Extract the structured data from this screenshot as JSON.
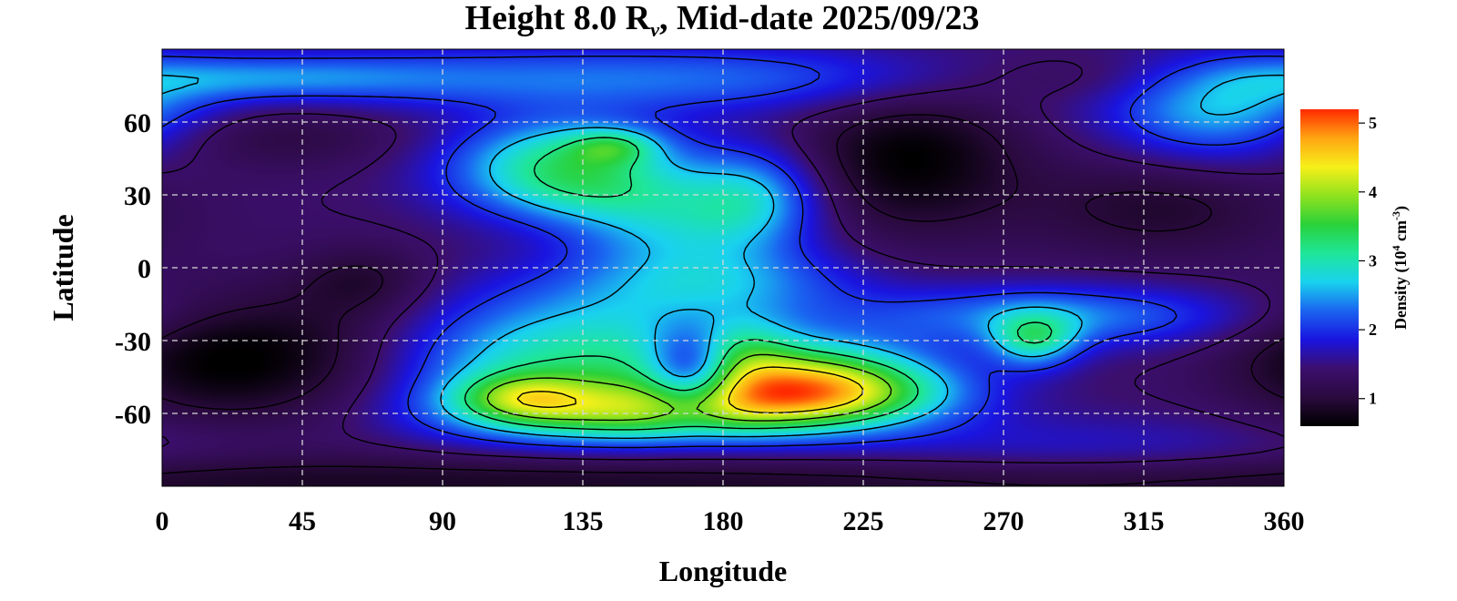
{
  "chart_data": {
    "type": "heatmap",
    "title": {
      "pre": "Height 8.0 R",
      "sub": "ν",
      "post": ", Mid-date 2025/09/23"
    },
    "xlabel": "Longitude",
    "ylabel": "Latitude",
    "x_ticks": [
      "0",
      "45",
      "90",
      "135",
      "180",
      "225",
      "270",
      "315",
      "360"
    ],
    "y_ticks": [
      "60",
      "30",
      "0",
      "-30",
      "-60"
    ],
    "xlim": [
      0,
      360
    ],
    "ylim": [
      -90,
      90
    ],
    "grid": true,
    "colorbar": {
      "label_pre": "Density (10",
      "label_exp": "4",
      "label_mid": " cm",
      "label_exp2": "-3",
      "label_post": ")",
      "ticks": [
        "1",
        "2",
        "3",
        "4",
        "5"
      ],
      "range": [
        0.6,
        5.2
      ],
      "position": "right",
      "colormap": [
        "#000000",
        "#2a0a3e",
        "#3c0f6e",
        "#1a14e0",
        "#1a64f0",
        "#19d2ee",
        "#1fe69a",
        "#2ad13a",
        "#8fe21e",
        "#f6f01a",
        "#ffa512",
        "#ff2a00"
      ]
    },
    "blobs": [
      {
        "lon": 130,
        "lat": 45,
        "w": 26,
        "h": 12,
        "amp": 1.6
      },
      {
        "lon": 145,
        "lat": 50,
        "w": 10,
        "h": 5,
        "amp": 0.8
      },
      {
        "lon": 190,
        "lat": 30,
        "w": 15,
        "h": 14,
        "amp": 1.0
      },
      {
        "lon": 140,
        "lat": 30,
        "w": 30,
        "h": 10,
        "amp": 0.9
      },
      {
        "lon": 165,
        "lat": 15,
        "w": 25,
        "h": 12,
        "amp": 0.9
      },
      {
        "lon": 180,
        "lat": -5,
        "w": 30,
        "h": 10,
        "amp": 0.7
      },
      {
        "lon": 150,
        "lat": -15,
        "w": 40,
        "h": 14,
        "amp": 0.6
      },
      {
        "lon": 130,
        "lat": -40,
        "w": 40,
        "h": 16,
        "amp": 1.5
      },
      {
        "lon": 150,
        "lat": -60,
        "w": 40,
        "h": 9,
        "amp": 1.8
      },
      {
        "lon": 115,
        "lat": -53,
        "w": 15,
        "h": 7,
        "amp": 1.1
      },
      {
        "lon": 210,
        "lat": -52,
        "w": 30,
        "h": 10,
        "amp": 2.6
      },
      {
        "lon": 205,
        "lat": -40,
        "w": 30,
        "h": 10,
        "amp": 1.0
      },
      {
        "lon": 185,
        "lat": -33,
        "w": 12,
        "h": 10,
        "amp": 0.6
      },
      {
        "lon": 285,
        "lat": -20,
        "w": 45,
        "h": 9,
        "amp": 1.0
      },
      {
        "lon": 280,
        "lat": -30,
        "w": 10,
        "h": 8,
        "amp": 1.3
      },
      {
        "lon": 150,
        "lat": 78,
        "w": 100,
        "h": 10,
        "amp": 0.9
      },
      {
        "lon": 30,
        "lat": 78,
        "w": 40,
        "h": 6,
        "amp": 0.6
      },
      {
        "lon": 340,
        "lat": 65,
        "w": 25,
        "h": 15,
        "amp": 1.3
      },
      {
        "lon": 290,
        "lat": -75,
        "w": 60,
        "h": 10,
        "amp": 0.4
      }
    ],
    "holes": [
      {
        "lon": 170,
        "lat": -43,
        "w": 10,
        "h": 12,
        "amp": 1.5
      },
      {
        "lon": 15,
        "lat": -38,
        "w": 25,
        "h": 18,
        "amp": 0.7
      },
      {
        "lon": 55,
        "lat": -35,
        "w": 25,
        "h": 20,
        "amp": 0.5
      },
      {
        "lon": 240,
        "lat": 45,
        "w": 25,
        "h": 22,
        "amp": 0.8
      },
      {
        "lon": 300,
        "lat": 78,
        "w": 35,
        "h": 8,
        "amp": 0.5
      },
      {
        "lon": 320,
        "lat": 25,
        "w": 30,
        "h": 15,
        "amp": 0.5
      },
      {
        "lon": 30,
        "lat": 55,
        "w": 35,
        "h": 10,
        "amp": 0.4
      },
      {
        "lon": 65,
        "lat": -5,
        "w": 15,
        "h": 10,
        "amp": 0.4
      }
    ],
    "base": 1.4,
    "contour_levels": [
      1.0,
      1.4,
      2.0,
      2.6,
      3.2,
      3.8,
      4.4
    ]
  }
}
